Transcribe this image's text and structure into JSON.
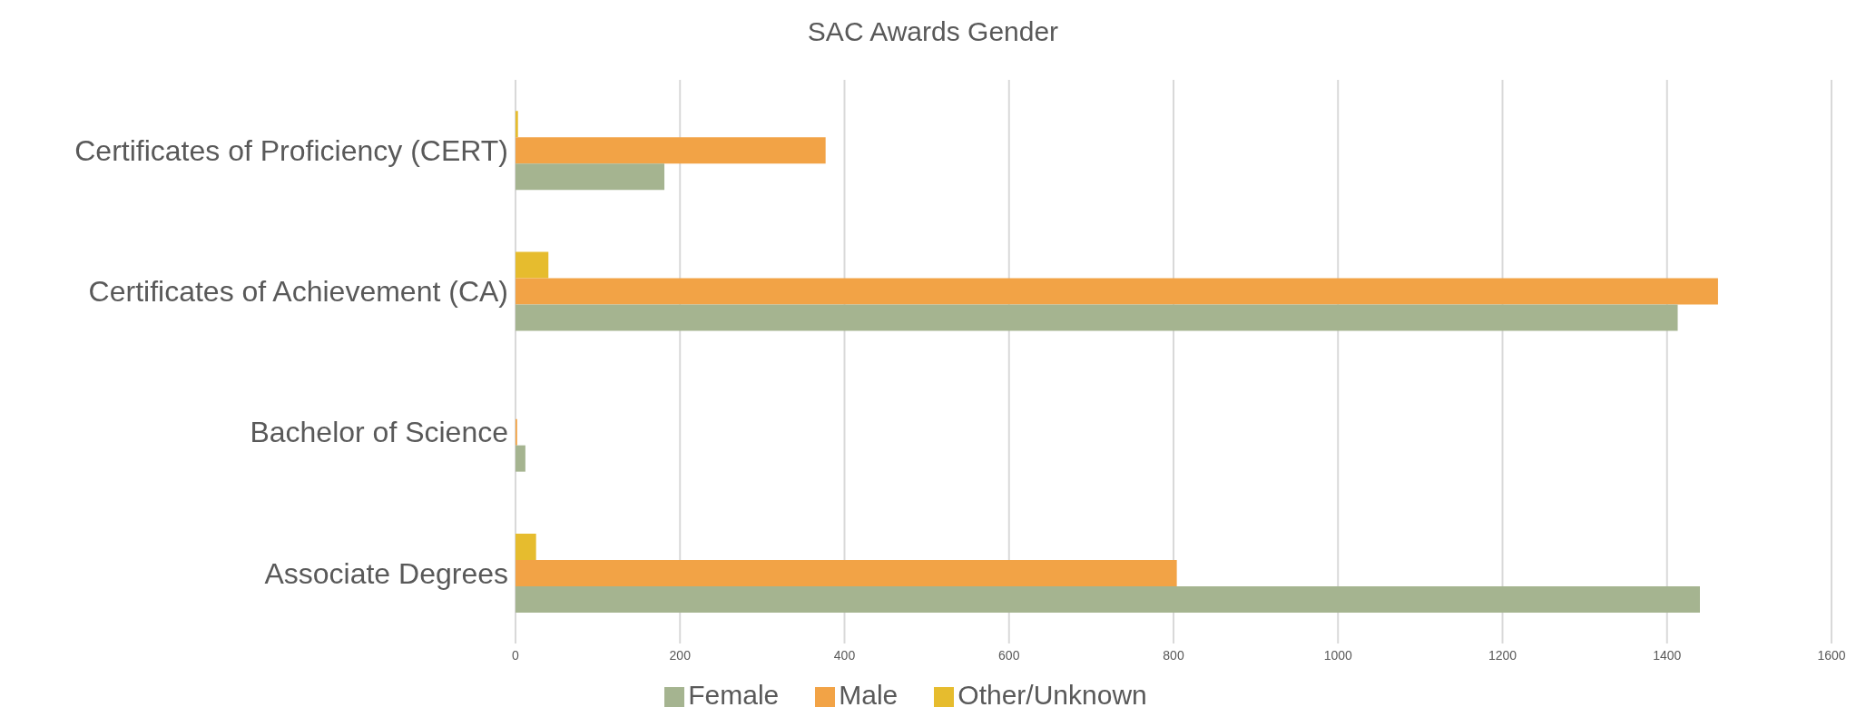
{
  "chart_data": {
    "type": "bar",
    "orientation": "horizontal",
    "title": "SAC Awards Gender",
    "categories": [
      "Certificates of Proficiency (CERT)",
      "Certificates of Achievement (CA)",
      "Bachelor of Science",
      "Associate Degrees"
    ],
    "series": [
      {
        "name": "Other/Unknown",
        "color": "#e6bc2e",
        "values": [
          3,
          40,
          0,
          25
        ]
      },
      {
        "name": "Male",
        "color": "#f2a346",
        "values": [
          377,
          1462,
          2,
          804
        ]
      },
      {
        "name": "Female",
        "color": "#a5b490",
        "values": [
          181,
          1413,
          12,
          1440
        ]
      }
    ],
    "xlim": [
      0,
      1600
    ],
    "xticks": [
      0,
      200,
      400,
      600,
      800,
      1000,
      1200,
      1400,
      1600
    ],
    "grid": "x",
    "legend": "bottom"
  }
}
